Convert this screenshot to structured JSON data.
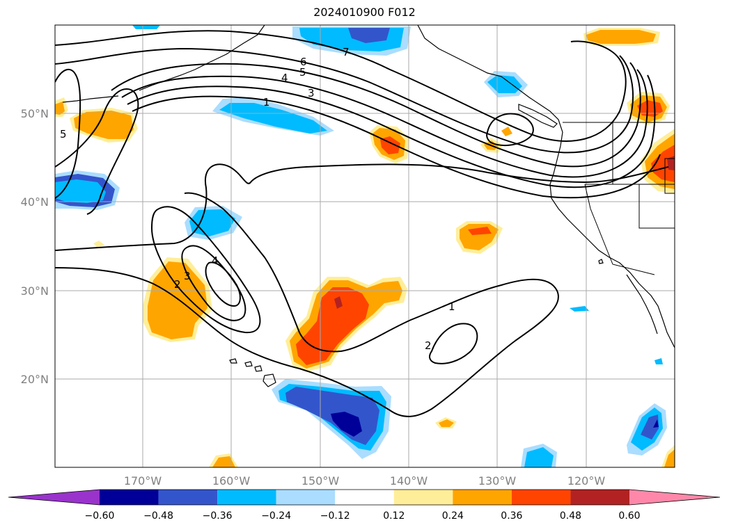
{
  "title": "2024010900 F012",
  "map": {
    "lon_labels": [
      "170°W",
      "160°W",
      "150°W",
      "140°W",
      "130°W",
      "120°W"
    ],
    "lat_labels": [
      "50°N",
      "40°N",
      "30°N",
      "20°N"
    ],
    "contour_labels": [
      "1",
      "3",
      "4",
      "5",
      "6",
      "7",
      "5",
      "4",
      "3",
      "2",
      "2",
      "1"
    ],
    "colors": {
      "grid": "#aaaaaa",
      "contour": "#000000",
      "coast": "#000000"
    }
  },
  "colorbar": {
    "tick_labels": [
      "−0.60",
      "−0.48",
      "−0.36",
      "−0.24",
      "−0.12",
      "0.12",
      "0.24",
      "0.36",
      "0.48",
      "0.60"
    ],
    "bins": [
      {
        "color": "#9933cc"
      },
      {
        "color": "#000099"
      },
      {
        "color": "#3355cc"
      },
      {
        "color": "#00bbff"
      },
      {
        "color": "#aaddff"
      },
      {
        "color": "#ffffff"
      },
      {
        "color": "#ffee99"
      },
      {
        "color": "#ffa500"
      },
      {
        "color": "#ff4400"
      },
      {
        "color": "#b22222"
      },
      {
        "color": "#ff88aa"
      }
    ]
  }
}
